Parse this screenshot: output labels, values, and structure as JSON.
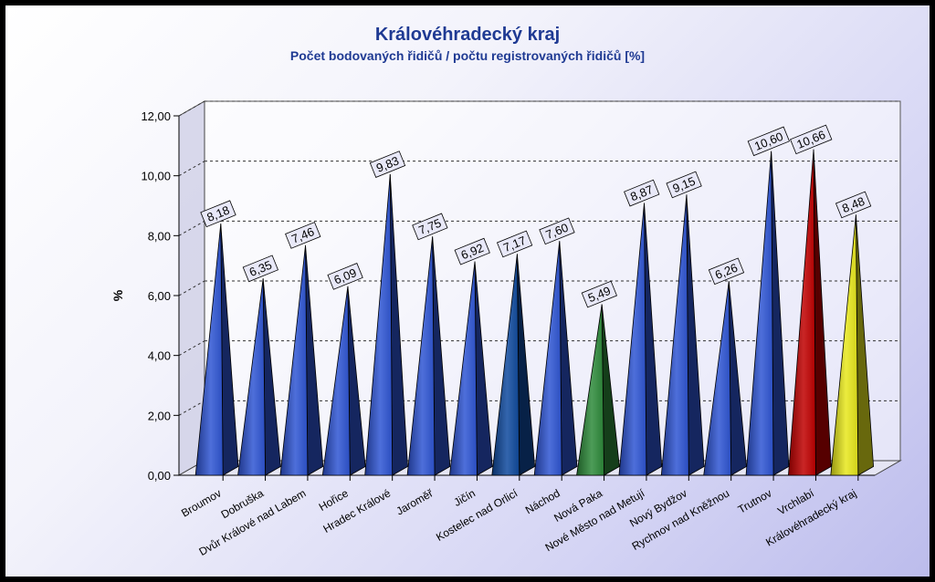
{
  "chart_data": {
    "type": "bar",
    "title": "Královéhradecký kraj",
    "subtitle": "Počet bodovaných řidičů / počtu registrovaných řidičů [%]",
    "ylabel": "%",
    "ylim": [
      0,
      12
    ],
    "yticks": [
      "0,00",
      "2,00",
      "4,00",
      "6,00",
      "8,00",
      "10,00",
      "12,00"
    ],
    "grid": true,
    "legend": "none",
    "categories": [
      "Broumov",
      "Dobruška",
      "Dvůr Králové nad Labem",
      "Hořice",
      "Hradec Králové",
      "Jaroměř",
      "Jičín",
      "Kostelec nad Orlicí",
      "Náchod",
      "Nová Paka",
      "Nové Město nad Metují",
      "Nový Bydžov",
      "Rychnov nad Kněžnou",
      "Trutnov",
      "Vrchlabí",
      "Královéhradecký kraj"
    ],
    "values": [
      8.18,
      6.35,
      7.46,
      6.09,
      9.83,
      7.75,
      6.92,
      7.17,
      7.6,
      5.49,
      8.87,
      9.15,
      6.26,
      10.6,
      10.66,
      8.48
    ],
    "labels": [
      "8,18",
      "6,35",
      "7,46",
      "6,09",
      "9,83",
      "7,75",
      "6,92",
      "7,17",
      "7,60",
      "5,49",
      "8,87",
      "9,15",
      "6,26",
      "10,60",
      "10,66",
      "8,48"
    ],
    "colors": [
      "#2f55d4",
      "#2f55d4",
      "#2f55d4",
      "#2f55d4",
      "#2f55d4",
      "#2f55d4",
      "#2f55d4",
      "#0f4a9e",
      "#2f55d4",
      "#2e8a3a",
      "#2f55d4",
      "#2f55d4",
      "#2f55d4",
      "#2f55d4",
      "#c00000",
      "#e8e81c"
    ]
  }
}
